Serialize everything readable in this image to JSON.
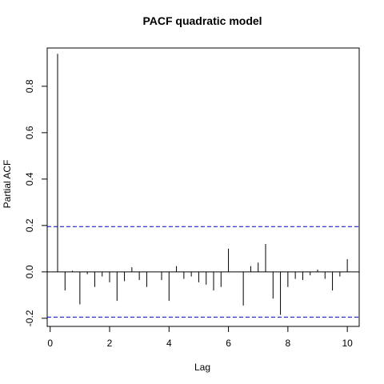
{
  "chart_data": {
    "type": "bar",
    "title": "PACF quadratic model",
    "xlabel": "Lag",
    "ylabel": "Partial ACF",
    "xlim": [
      -0.1,
      10.4
    ],
    "ylim": [
      -0.235,
      0.965
    ],
    "x_ticks": [
      0,
      2,
      4,
      6,
      8,
      10
    ],
    "y_ticks": [
      -0.2,
      0.0,
      0.2,
      0.4,
      0.6,
      0.8
    ],
    "y_tick_labels": [
      "-0.2",
      "0.0",
      "0.2",
      "0.4",
      "0.6",
      "0.8"
    ],
    "x_tick_labels": [
      "0",
      "2",
      "4",
      "6",
      "8",
      "10"
    ],
    "confidence_bounds": [
      0.195,
      -0.195
    ],
    "bound_color": "#0000cc",
    "series": [
      {
        "lag": [
          0.25,
          0.5,
          0.75,
          1.0,
          1.25,
          1.5,
          1.75,
          2.0,
          2.25,
          2.5,
          2.75,
          3.0,
          3.25,
          3.5,
          3.75,
          4.0,
          4.25,
          4.5,
          4.75,
          5.0,
          5.25,
          5.5,
          5.75,
          6.0,
          6.25,
          6.5,
          6.75,
          7.0,
          7.25,
          7.5,
          7.75,
          8.0,
          8.25,
          8.5,
          8.75,
          9.0,
          9.25,
          9.5,
          9.75,
          10.0
        ],
        "values": [
          0.94,
          -0.08,
          0.005,
          -0.14,
          -0.01,
          -0.065,
          -0.02,
          -0.045,
          -0.125,
          -0.04,
          0.02,
          -0.035,
          -0.065,
          0.0,
          -0.035,
          -0.125,
          0.025,
          -0.03,
          -0.02,
          -0.045,
          -0.055,
          -0.08,
          -0.065,
          0.1,
          0.0,
          -0.145,
          0.025,
          0.04,
          0.12,
          -0.115,
          -0.185,
          -0.065,
          -0.03,
          -0.035,
          -0.015,
          0.01,
          -0.03,
          -0.08,
          -0.02,
          0.055
        ]
      }
    ]
  }
}
